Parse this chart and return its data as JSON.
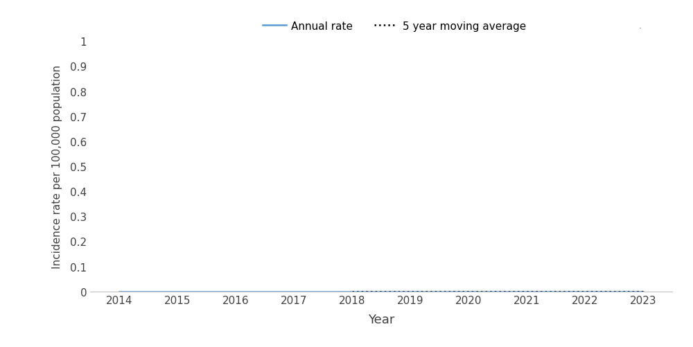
{
  "years": [
    2014,
    2015,
    2016,
    2017,
    2018,
    2019,
    2020,
    2021,
    2022,
    2023
  ],
  "annual_rate": [
    0.0,
    0.0,
    0.0,
    0.0,
    0.0,
    0.0,
    0.0,
    0.0,
    0.0,
    0.0
  ],
  "moving_avg": [
    null,
    null,
    null,
    null,
    0.0,
    0.0,
    0.0,
    0.0,
    0.0,
    0.0
  ],
  "annual_rate_color": "#5B9BD5",
  "moving_avg_color": "#000000",
  "xlabel": "Year",
  "ylabel": "Incidence rate per 100,000 population",
  "ylim": [
    0,
    1.0
  ],
  "ytick_values": [
    0,
    0.1,
    0.2,
    0.3,
    0.4,
    0.5,
    0.6,
    0.7,
    0.8,
    0.9,
    1.0
  ],
  "ytick_labels": [
    "0",
    "0.1",
    "0.2",
    "0.3",
    "0.4",
    "0.5",
    "0.6",
    "0.7",
    "0.8",
    "0.9",
    "1"
  ],
  "legend_annual_label": "Annual rate",
  "legend_moving_label": "5 year moving average",
  "background_color": "#ffffff",
  "line_width": 1.8,
  "spine_color": "#c0c0c0"
}
